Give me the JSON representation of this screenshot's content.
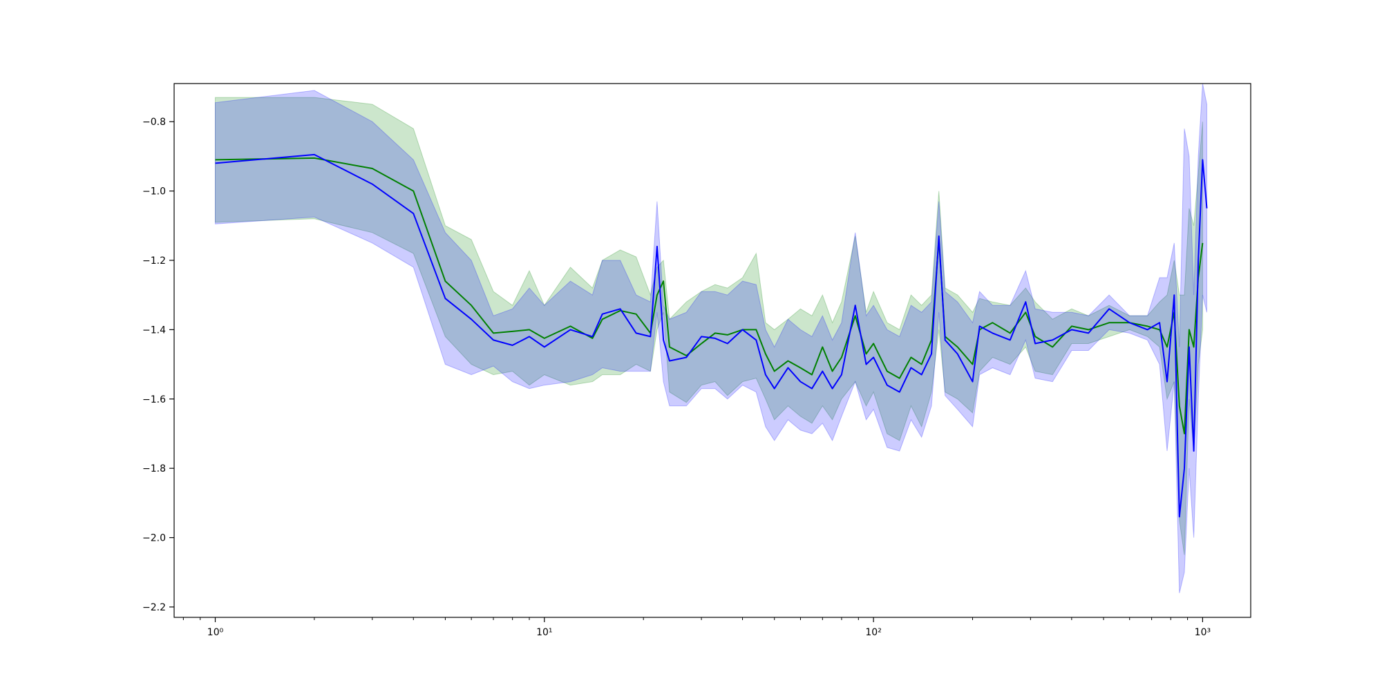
{
  "chart_data": {
    "type": "line",
    "xscale": "log",
    "xlim": [
      0.75,
      1400
    ],
    "ylim": [
      -2.23,
      -0.69
    ],
    "x_ticks": [
      {
        "value": 1,
        "label": "10⁰"
      },
      {
        "value": 10,
        "label": "10¹"
      },
      {
        "value": 100,
        "label": "10²"
      },
      {
        "value": 1000,
        "label": "10³"
      }
    ],
    "y_ticks": [
      {
        "value": -0.8,
        "label": "−0.8"
      },
      {
        "value": -1.0,
        "label": "−1.0"
      },
      {
        "value": -1.2,
        "label": "−1.2"
      },
      {
        "value": -1.4,
        "label": "−1.4"
      },
      {
        "value": -1.6,
        "label": "−1.6"
      },
      {
        "value": -1.8,
        "label": "−1.8"
      },
      {
        "value": -2.0,
        "label": "−2.0"
      },
      {
        "value": -2.2,
        "label": "−2.2"
      }
    ],
    "grid": false,
    "title": "",
    "xlabel": "",
    "ylabel": "",
    "series": [
      {
        "color": "#008000",
        "band_color": "#008000",
        "band_opacity": 0.2,
        "points": [
          [
            1,
            -0.91,
            -1.09,
            -0.73
          ],
          [
            2,
            -0.905,
            -1.08,
            -0.73
          ],
          [
            3,
            -0.935,
            -1.12,
            -0.75
          ],
          [
            4,
            -1.0,
            -1.18,
            -0.82
          ],
          [
            5,
            -1.26,
            -1.42,
            -1.1
          ],
          [
            6,
            -1.33,
            -1.5,
            -1.14
          ],
          [
            7,
            -1.41,
            -1.53,
            -1.29
          ],
          [
            8,
            -1.405,
            -1.52,
            -1.33
          ],
          [
            9,
            -1.4,
            -1.56,
            -1.23
          ],
          [
            10,
            -1.425,
            -1.53,
            -1.33
          ],
          [
            12,
            -1.39,
            -1.56,
            -1.22
          ],
          [
            14,
            -1.425,
            -1.55,
            -1.28
          ],
          [
            15,
            -1.37,
            -1.53,
            -1.2
          ],
          [
            17,
            -1.345,
            -1.53,
            -1.17
          ],
          [
            19,
            -1.355,
            -1.5,
            -1.19
          ],
          [
            21,
            -1.41,
            -1.52,
            -1.3
          ],
          [
            22,
            -1.3,
            -1.4,
            -1.22
          ],
          [
            23,
            -1.26,
            -1.35,
            -1.2
          ],
          [
            24,
            -1.45,
            -1.58,
            -1.37
          ],
          [
            27,
            -1.475,
            -1.61,
            -1.32
          ],
          [
            30,
            -1.44,
            -1.56,
            -1.29
          ],
          [
            33,
            -1.41,
            -1.55,
            -1.27
          ],
          [
            36,
            -1.415,
            -1.59,
            -1.28
          ],
          [
            40,
            -1.4,
            -1.55,
            -1.25
          ],
          [
            44,
            -1.4,
            -1.54,
            -1.18
          ],
          [
            47,
            -1.47,
            -1.6,
            -1.38
          ],
          [
            50,
            -1.52,
            -1.66,
            -1.4
          ],
          [
            55,
            -1.49,
            -1.62,
            -1.37
          ],
          [
            60,
            -1.51,
            -1.65,
            -1.34
          ],
          [
            65,
            -1.53,
            -1.67,
            -1.36
          ],
          [
            70,
            -1.45,
            -1.62,
            -1.3
          ],
          [
            75,
            -1.52,
            -1.66,
            -1.38
          ],
          [
            80,
            -1.48,
            -1.6,
            -1.32
          ],
          [
            88,
            -1.36,
            -1.55,
            -1.13
          ],
          [
            95,
            -1.47,
            -1.62,
            -1.35
          ],
          [
            100,
            -1.44,
            -1.58,
            -1.29
          ],
          [
            110,
            -1.52,
            -1.7,
            -1.38
          ],
          [
            120,
            -1.54,
            -1.72,
            -1.4
          ],
          [
            130,
            -1.48,
            -1.62,
            -1.3
          ],
          [
            140,
            -1.5,
            -1.68,
            -1.33
          ],
          [
            150,
            -1.43,
            -1.58,
            -1.3
          ],
          [
            158,
            -1.14,
            -1.4,
            -1.0
          ],
          [
            165,
            -1.42,
            -1.58,
            -1.28
          ],
          [
            180,
            -1.45,
            -1.6,
            -1.3
          ],
          [
            200,
            -1.5,
            -1.64,
            -1.35
          ],
          [
            210,
            -1.4,
            -1.52,
            -1.31
          ],
          [
            230,
            -1.38,
            -1.48,
            -1.32
          ],
          [
            260,
            -1.41,
            -1.5,
            -1.33
          ],
          [
            290,
            -1.35,
            -1.45,
            -1.28
          ],
          [
            310,
            -1.42,
            -1.52,
            -1.32
          ],
          [
            350,
            -1.45,
            -1.53,
            -1.37
          ],
          [
            400,
            -1.39,
            -1.44,
            -1.34
          ],
          [
            450,
            -1.4,
            -1.44,
            -1.36
          ],
          [
            520,
            -1.38,
            -1.42,
            -1.33
          ],
          [
            600,
            -1.38,
            -1.4,
            -1.36
          ],
          [
            680,
            -1.39,
            -1.42,
            -1.36
          ],
          [
            740,
            -1.4,
            -1.45,
            -1.32
          ],
          [
            780,
            -1.45,
            -1.6,
            -1.3
          ],
          [
            820,
            -1.35,
            -1.55,
            -1.2
          ],
          [
            850,
            -1.62,
            -1.95,
            -1.3
          ],
          [
            880,
            -1.7,
            -2.05,
            -1.3
          ],
          [
            910,
            -1.4,
            -1.6,
            -1.05
          ],
          [
            940,
            -1.45,
            -1.75,
            -1.1
          ],
          [
            970,
            -1.25,
            -1.5,
            -0.95
          ],
          [
            1000,
            -1.15,
            -1.4,
            -0.8
          ]
        ]
      },
      {
        "color": "#0000ff",
        "band_color": "#0000ff",
        "band_opacity": 0.2,
        "points": [
          [
            1,
            -0.92,
            -1.095,
            -0.745
          ],
          [
            2,
            -0.895,
            -1.075,
            -0.71
          ],
          [
            3,
            -0.98,
            -1.15,
            -0.8
          ],
          [
            4,
            -1.065,
            -1.22,
            -0.91
          ],
          [
            5,
            -1.31,
            -1.5,
            -1.12
          ],
          [
            6,
            -1.37,
            -1.53,
            -1.2
          ],
          [
            7,
            -1.43,
            -1.505,
            -1.36
          ],
          [
            8,
            -1.445,
            -1.55,
            -1.34
          ],
          [
            9,
            -1.42,
            -1.57,
            -1.28
          ],
          [
            10,
            -1.45,
            -1.56,
            -1.33
          ],
          [
            12,
            -1.4,
            -1.55,
            -1.26
          ],
          [
            14,
            -1.42,
            -1.53,
            -1.3
          ],
          [
            15,
            -1.355,
            -1.51,
            -1.2
          ],
          [
            17,
            -1.34,
            -1.52,
            -1.2
          ],
          [
            19,
            -1.41,
            -1.52,
            -1.3
          ],
          [
            21,
            -1.42,
            -1.52,
            -1.32
          ],
          [
            22,
            -1.16,
            -1.35,
            -1.03
          ],
          [
            23,
            -1.43,
            -1.55,
            -1.33
          ],
          [
            24,
            -1.49,
            -1.62,
            -1.37
          ],
          [
            27,
            -1.48,
            -1.62,
            -1.35
          ],
          [
            30,
            -1.42,
            -1.57,
            -1.29
          ],
          [
            33,
            -1.425,
            -1.57,
            -1.29
          ],
          [
            36,
            -1.44,
            -1.6,
            -1.3
          ],
          [
            40,
            -1.4,
            -1.56,
            -1.26
          ],
          [
            44,
            -1.43,
            -1.58,
            -1.27
          ],
          [
            47,
            -1.53,
            -1.68,
            -1.4
          ],
          [
            50,
            -1.57,
            -1.72,
            -1.45
          ],
          [
            55,
            -1.51,
            -1.66,
            -1.37
          ],
          [
            60,
            -1.55,
            -1.69,
            -1.4
          ],
          [
            65,
            -1.57,
            -1.7,
            -1.42
          ],
          [
            70,
            -1.52,
            -1.67,
            -1.36
          ],
          [
            75,
            -1.57,
            -1.72,
            -1.43
          ],
          [
            80,
            -1.53,
            -1.65,
            -1.38
          ],
          [
            88,
            -1.33,
            -1.55,
            -1.12
          ],
          [
            95,
            -1.5,
            -1.66,
            -1.36
          ],
          [
            100,
            -1.48,
            -1.63,
            -1.33
          ],
          [
            110,
            -1.56,
            -1.74,
            -1.4
          ],
          [
            120,
            -1.58,
            -1.75,
            -1.42
          ],
          [
            130,
            -1.51,
            -1.66,
            -1.33
          ],
          [
            140,
            -1.53,
            -1.71,
            -1.35
          ],
          [
            150,
            -1.47,
            -1.62,
            -1.32
          ],
          [
            158,
            -1.13,
            -1.35,
            -1.03
          ],
          [
            165,
            -1.43,
            -1.59,
            -1.29
          ],
          [
            180,
            -1.47,
            -1.63,
            -1.32
          ],
          [
            200,
            -1.55,
            -1.68,
            -1.38
          ],
          [
            210,
            -1.39,
            -1.53,
            -1.29
          ],
          [
            230,
            -1.41,
            -1.51,
            -1.33
          ],
          [
            260,
            -1.43,
            -1.53,
            -1.33
          ],
          [
            290,
            -1.32,
            -1.43,
            -1.23
          ],
          [
            310,
            -1.44,
            -1.54,
            -1.34
          ],
          [
            350,
            -1.43,
            -1.55,
            -1.35
          ],
          [
            400,
            -1.4,
            -1.46,
            -1.35
          ],
          [
            450,
            -1.41,
            -1.46,
            -1.36
          ],
          [
            520,
            -1.34,
            -1.4,
            -1.3
          ],
          [
            600,
            -1.38,
            -1.41,
            -1.36
          ],
          [
            680,
            -1.4,
            -1.43,
            -1.36
          ],
          [
            740,
            -1.38,
            -1.5,
            -1.25
          ],
          [
            780,
            -1.55,
            -1.75,
            -1.25
          ],
          [
            820,
            -1.3,
            -1.55,
            -1.15
          ],
          [
            850,
            -1.94,
            -2.16,
            -1.45
          ],
          [
            880,
            -1.8,
            -2.1,
            -0.82
          ],
          [
            910,
            -1.45,
            -1.8,
            -0.9
          ],
          [
            940,
            -1.75,
            -2.0,
            -1.3
          ],
          [
            970,
            -1.2,
            -1.6,
            -0.9
          ],
          [
            1000,
            -0.91,
            -1.3,
            -0.69
          ],
          [
            1030,
            -1.05,
            -1.35,
            -0.75
          ]
        ]
      }
    ]
  }
}
